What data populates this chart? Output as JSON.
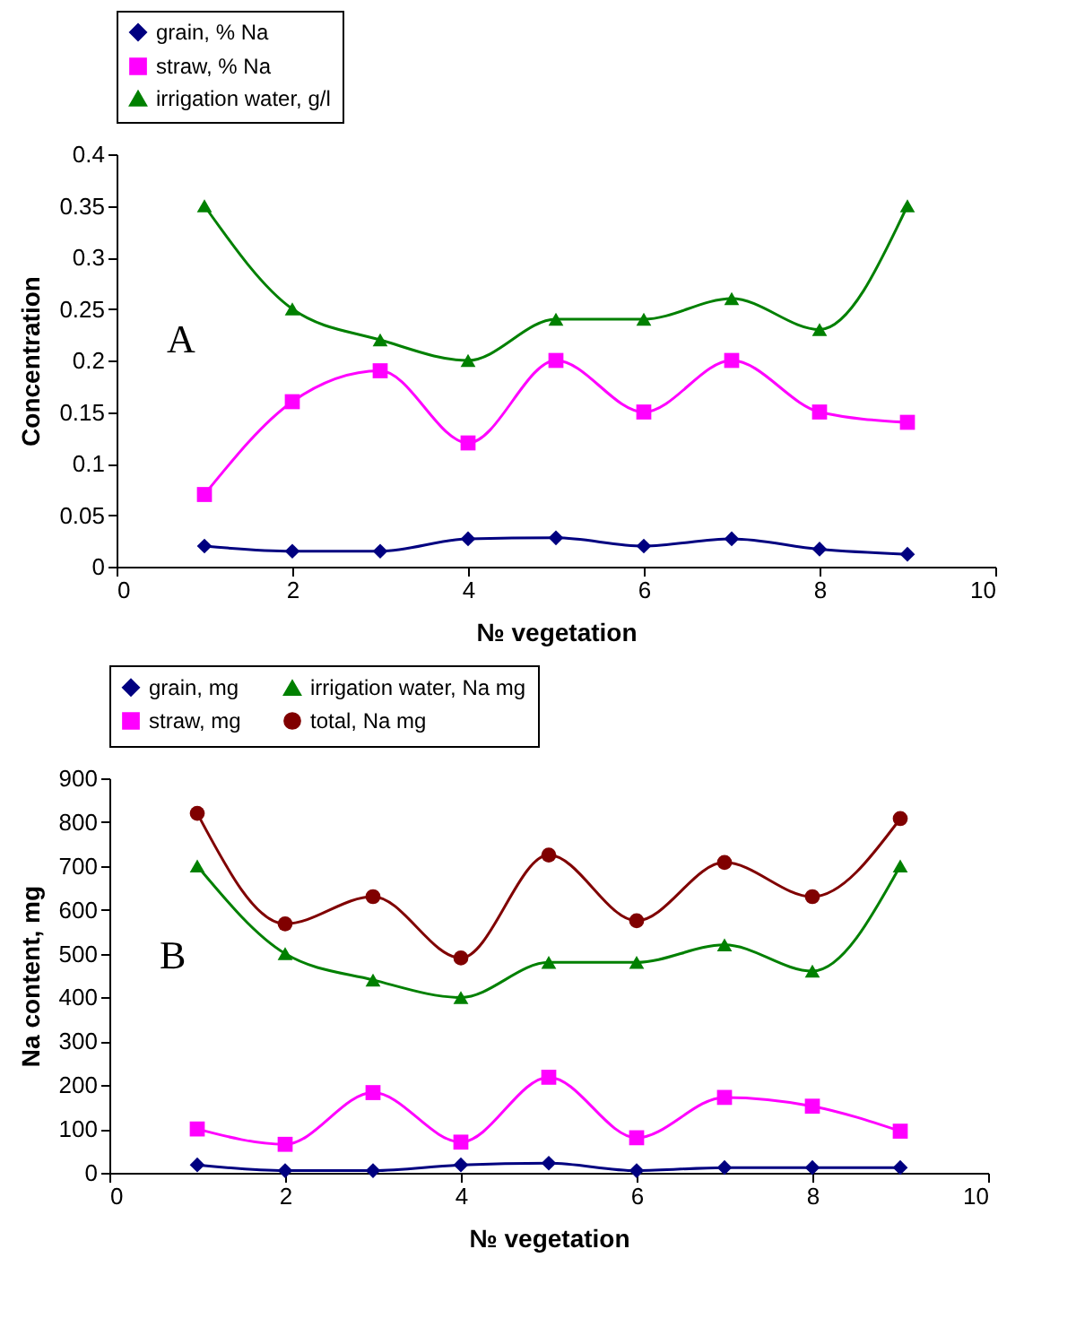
{
  "chart_data": [
    {
      "type": "line",
      "xlabel": "№ vegetation",
      "ylabel": "Concentration",
      "x": [
        1,
        2,
        3,
        4,
        5,
        6,
        7,
        8,
        9
      ],
      "xlim": [
        0,
        10
      ],
      "xticks": [
        0,
        2,
        4,
        6,
        8,
        10
      ],
      "ylim": [
        0,
        0.4
      ],
      "yticks": [
        0,
        0.05,
        0.1,
        0.15,
        0.2,
        0.25,
        0.3,
        0.35,
        0.4
      ],
      "grid": false,
      "legend": "top",
      "annotations": [
        "A"
      ],
      "series": [
        {
          "name": "grain, % Na",
          "color": "#000080",
          "marker": "diamond",
          "values": [
            0.02,
            0.015,
            0.015,
            0.027,
            0.028,
            0.02,
            0.027,
            0.017,
            0.012
          ]
        },
        {
          "name": "straw, % Na",
          "color": "#ff00ff",
          "marker": "square",
          "values": [
            0.07,
            0.16,
            0.19,
            0.12,
            0.2,
            0.15,
            0.2,
            0.15,
            0.14
          ]
        },
        {
          "name": "irrigation water, g/l",
          "color": "#008000",
          "marker": "triangle",
          "values": [
            0.35,
            0.25,
            0.22,
            0.2,
            0.24,
            0.24,
            0.26,
            0.23,
            0.35
          ]
        }
      ]
    },
    {
      "type": "line",
      "xlabel": "№ vegetation",
      "ylabel": "Na content, mg",
      "x": [
        1,
        2,
        3,
        4,
        5,
        6,
        7,
        8,
        9
      ],
      "xlim": [
        0,
        10
      ],
      "xticks": [
        0,
        2,
        4,
        6,
        8,
        10
      ],
      "ylim": [
        0,
        900
      ],
      "yticks": [
        0,
        100,
        200,
        300,
        400,
        500,
        600,
        700,
        800,
        900
      ],
      "grid": false,
      "legend": "top",
      "annotations": [
        "B"
      ],
      "series": [
        {
          "name": "grain, mg",
          "color": "#000080",
          "marker": "diamond",
          "values": [
            18,
            5,
            5,
            18,
            22,
            5,
            12,
            12,
            12
          ]
        },
        {
          "name": "straw, mg",
          "color": "#ff00ff",
          "marker": "square",
          "values": [
            100,
            65,
            183,
            70,
            218,
            80,
            172,
            152,
            95
          ]
        },
        {
          "name": "irrigation water, Na mg",
          "color": "#008000",
          "marker": "triangle",
          "values": [
            700,
            500,
            440,
            400,
            480,
            480,
            520,
            460,
            700
          ]
        },
        {
          "name": "total, Na mg",
          "color": "#800000",
          "marker": "circle",
          "values": [
            820,
            568,
            630,
            490,
            725,
            575,
            708,
            630,
            808
          ]
        }
      ]
    }
  ]
}
